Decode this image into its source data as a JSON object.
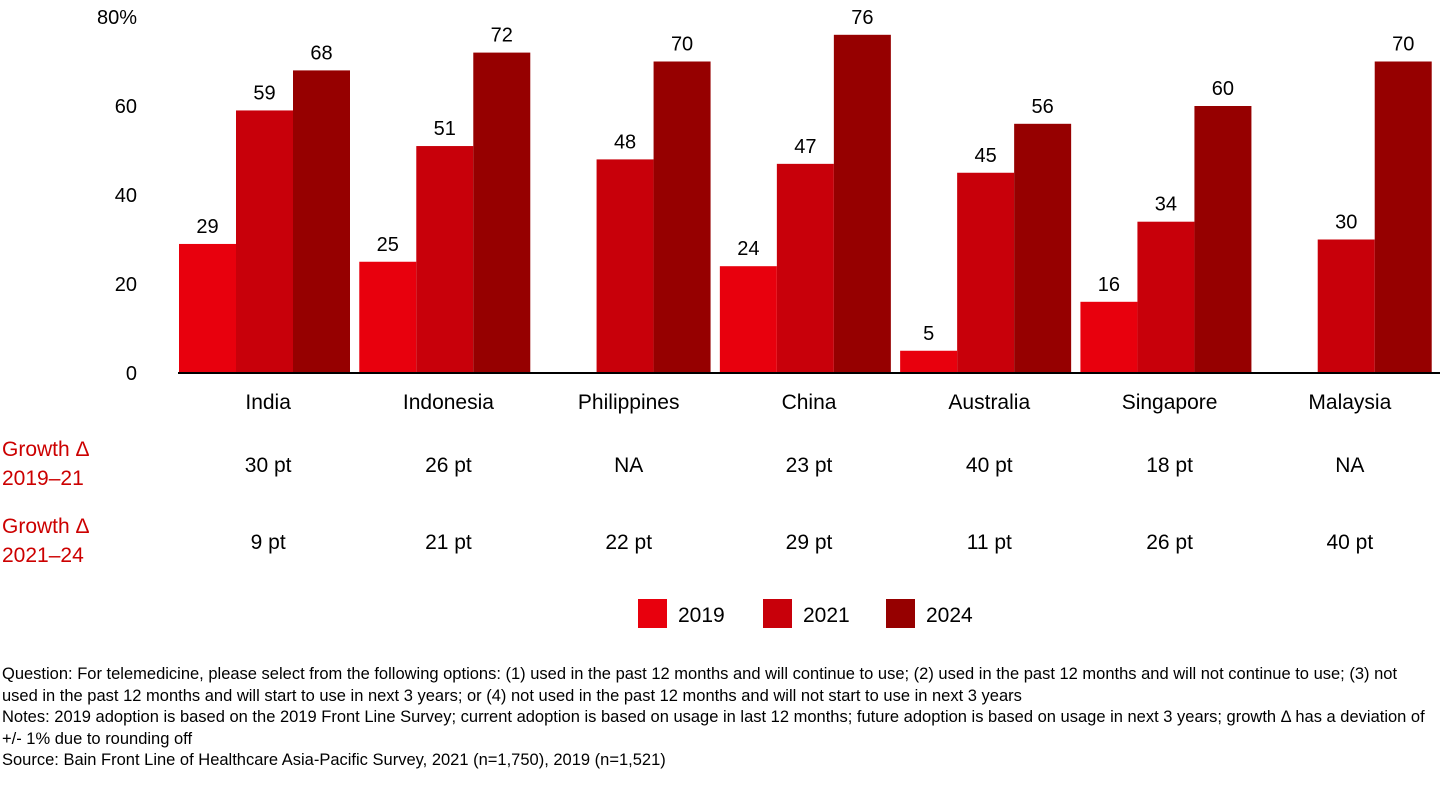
{
  "chart_data": {
    "type": "bar",
    "title": "",
    "xlabel": "",
    "ylabel": "",
    "ylim": [
      0,
      80
    ],
    "yticks": [
      {
        "value": 0,
        "label": "0"
      },
      {
        "value": 20,
        "label": "20"
      },
      {
        "value": 40,
        "label": "40"
      },
      {
        "value": 60,
        "label": "60"
      },
      {
        "value": 80,
        "label": "80%"
      }
    ],
    "grid": false,
    "legend_position": "bottom-right",
    "categories": [
      "India",
      "Indonesia",
      "Philippines",
      "China",
      "Australia",
      "Singapore",
      "Malaysia"
    ],
    "series": [
      {
        "name": "2019",
        "color": "#e8000d",
        "values": [
          29,
          25,
          null,
          24,
          5,
          16,
          null
        ],
        "labels": [
          "29",
          "25",
          "",
          "24",
          "5",
          "16",
          ""
        ]
      },
      {
        "name": "2021",
        "color": "#c8000a",
        "values": [
          59,
          51,
          48,
          47,
          45,
          34,
          30
        ],
        "labels": [
          "59",
          "51",
          "48",
          "47",
          "45",
          "34",
          "30"
        ]
      },
      {
        "name": "2024",
        "color": "#960000",
        "values": [
          68,
          72,
          70,
          76,
          56,
          60,
          70
        ],
        "labels": [
          "68",
          "72",
          "70",
          "76",
          "56",
          "60",
          "70"
        ]
      }
    ],
    "growth_rows": [
      {
        "label_line1": "Growth Δ",
        "label_line2": "2019–21",
        "values": [
          "30 pt",
          "26 pt",
          "NA",
          "23 pt",
          "40 pt",
          "18 pt",
          "NA"
        ]
      },
      {
        "label_line1": "Growth Δ",
        "label_line2": "2021–24",
        "values": [
          "9 pt",
          "21 pt",
          "22 pt",
          "29 pt",
          "11 pt",
          "26 pt",
          "40 pt"
        ]
      }
    ],
    "growth_label_color": "#cc0000"
  },
  "footnotes": {
    "question": "Question: For telemedicine, please select from the following options: (1) used in the past 12 months and will continue to use; (2) used in the past 12 months and will not continue to use; (3) not used in the past 12 months and will start to use in next 3 years; or (4) not used in the past 12 months and will not start to use in next 3 years",
    "notes": "Notes: 2019 adoption is based on the 2019 Front Line Survey; current adoption is based on usage in last 12 months; future adoption is based on usage in next 3 years; growth Δ has a deviation of +/- 1% due to rounding off",
    "source": "Source: Bain Front Line of Healthcare Asia-Pacific Survey, 2021 (n=1,750), 2019 (n=1,521)"
  }
}
